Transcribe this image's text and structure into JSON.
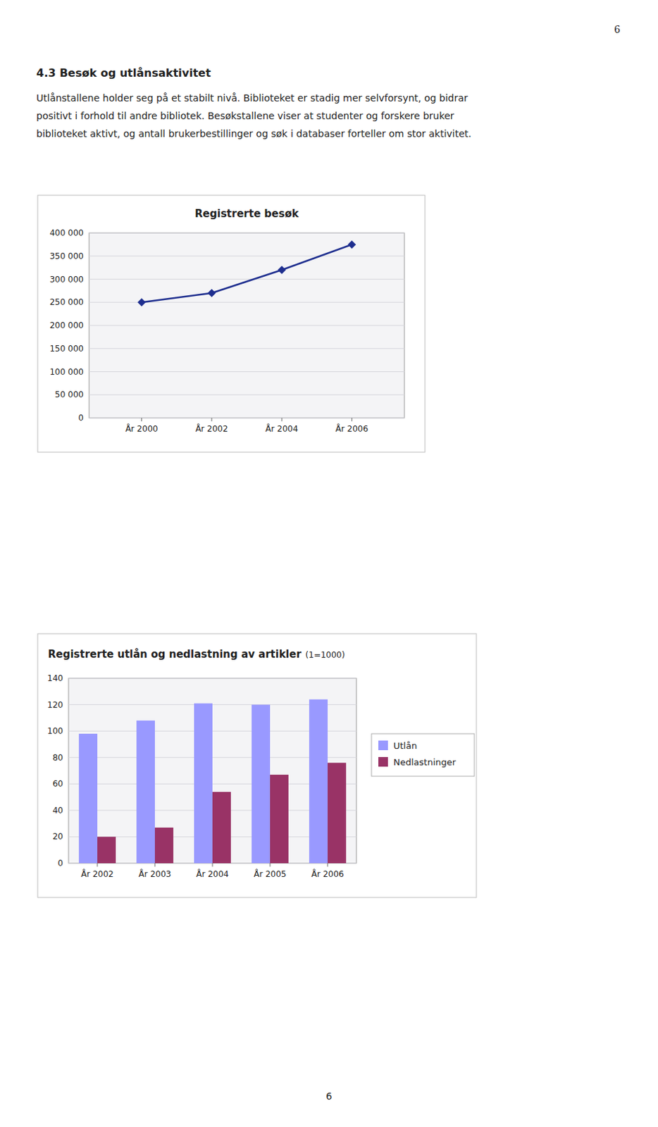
{
  "page_number": "6",
  "heading": "4.3 Besøk og utlånsaktivitet",
  "body": [
    "Utlånstallene holder seg på et stabilt nivå. Biblioteket er stadig mer selvforsynt, og bidrar",
    "positivt i forhold til andre bibliotek. Besøkstallene viser at studenter og forskere bruker",
    "biblioteket aktivt, og antall brukerbestillinger og søk i databaser forteller om stor aktivitet."
  ],
  "chart_data": [
    {
      "type": "line",
      "title": "Registrerte besøk",
      "x": [
        2000,
        2002,
        2004,
        2006
      ],
      "values": [
        250000,
        270000,
        320000,
        375000
      ],
      "color": "#1F2F8F",
      "marker": "diamond",
      "xlim": [
        1998.5,
        2007.5
      ],
      "xticks": [
        {
          "value": 2000,
          "label": "År 2000"
        },
        {
          "value": 2002,
          "label": "År 2002"
        },
        {
          "value": 2004,
          "label": "År 2004"
        },
        {
          "value": 2006,
          "label": "År 2006"
        }
      ],
      "ylim": [
        0,
        400000
      ],
      "yticks": [
        0,
        {
          "value": 50000,
          "label": "50 000"
        },
        {
          "value": 100000,
          "label": "100 000"
        },
        {
          "value": 150000,
          "label": "150 000"
        },
        {
          "value": 200000,
          "label": "200 000"
        },
        {
          "value": 250000,
          "label": "250 000"
        },
        {
          "value": 300000,
          "label": "300 000"
        },
        {
          "value": 350000,
          "label": "350 000"
        },
        {
          "value": 400000,
          "label": "400 000"
        }
      ],
      "grid": true
    },
    {
      "type": "bar",
      "title": "Registrerte utlån og nedlastning av artikler",
      "subtitle": "(1=1000)",
      "categories": [
        "År 2002",
        "År 2003",
        "År 2004",
        "År 2005",
        "År 2006"
      ],
      "series": [
        {
          "name": "Utlån",
          "color": "#9999FF",
          "values": [
            98,
            108,
            121,
            120,
            124
          ]
        },
        {
          "name": "Nedlastninger",
          "color": "#993366",
          "values": [
            20,
            27,
            54,
            67,
            76
          ]
        }
      ],
      "ylim": [
        0,
        140
      ],
      "yticks": [
        0,
        20,
        40,
        60,
        80,
        100,
        120,
        140
      ],
      "grid": true,
      "legend": "right"
    }
  ]
}
